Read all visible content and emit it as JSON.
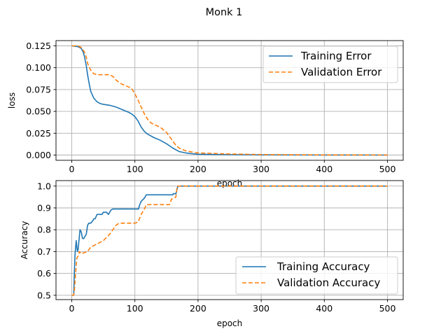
{
  "figure": {
    "suptitle": "Monk 1"
  },
  "chart_data": [
    {
      "type": "line",
      "xlabel": "epoch",
      "ylabel": "loss",
      "xlim": [
        -25,
        525
      ],
      "ylim": [
        -0.006,
        0.131
      ],
      "x_ticks": [
        0,
        100,
        200,
        300,
        400,
        500
      ],
      "y_ticks": [
        0.0,
        0.025,
        0.05,
        0.075,
        0.1,
        0.125
      ],
      "y_tick_labels": [
        "0.000",
        "0.025",
        "0.050",
        "0.075",
        "0.100",
        "0.125"
      ],
      "grid": true,
      "legend": "upper right",
      "series": [
        {
          "name": "Training Error",
          "color": "#1f77b4",
          "linestyle": "solid",
          "points": [
            [
              0,
              0.125
            ],
            [
              10,
              0.124
            ],
            [
              15,
              0.122
            ],
            [
              18,
              0.118
            ],
            [
              20,
              0.113
            ],
            [
              23,
              0.102
            ],
            [
              25,
              0.092
            ],
            [
              28,
              0.08
            ],
            [
              30,
              0.073
            ],
            [
              35,
              0.065
            ],
            [
              40,
              0.061
            ],
            [
              45,
              0.059
            ],
            [
              50,
              0.058
            ],
            [
              60,
              0.057
            ],
            [
              70,
              0.055
            ],
            [
              80,
              0.052
            ],
            [
              90,
              0.049
            ],
            [
              95,
              0.047
            ],
            [
              100,
              0.044
            ],
            [
              105,
              0.039
            ],
            [
              110,
              0.032
            ],
            [
              115,
              0.027
            ],
            [
              120,
              0.024
            ],
            [
              130,
              0.02
            ],
            [
              140,
              0.017
            ],
            [
              150,
              0.013
            ],
            [
              160,
              0.008
            ],
            [
              170,
              0.004
            ],
            [
              180,
              0.0025
            ],
            [
              190,
              0.0015
            ],
            [
              200,
              0.001
            ],
            [
              250,
              0.0004
            ],
            [
              300,
              0.0002
            ],
            [
              400,
              0.0001
            ],
            [
              500,
              0.0
            ]
          ]
        },
        {
          "name": "Validation Error",
          "color": "#ff7f0e",
          "linestyle": "dashed",
          "points": [
            [
              0,
              0.125
            ],
            [
              10,
              0.125
            ],
            [
              15,
              0.123
            ],
            [
              20,
              0.118
            ],
            [
              23,
              0.112
            ],
            [
              25,
              0.105
            ],
            [
              30,
              0.097
            ],
            [
              35,
              0.093
            ],
            [
              40,
              0.092
            ],
            [
              50,
              0.092
            ],
            [
              60,
              0.092
            ],
            [
              65,
              0.09
            ],
            [
              70,
              0.086
            ],
            [
              75,
              0.083
            ],
            [
              80,
              0.081
            ],
            [
              90,
              0.078
            ],
            [
              95,
              0.076
            ],
            [
              100,
              0.07
            ],
            [
              105,
              0.063
            ],
            [
              110,
              0.055
            ],
            [
              115,
              0.047
            ],
            [
              120,
              0.041
            ],
            [
              125,
              0.037
            ],
            [
              130,
              0.035
            ],
            [
              140,
              0.032
            ],
            [
              150,
              0.026
            ],
            [
              155,
              0.021
            ],
            [
              160,
              0.016
            ],
            [
              165,
              0.011
            ],
            [
              170,
              0.008
            ],
            [
              180,
              0.005
            ],
            [
              190,
              0.0035
            ],
            [
              200,
              0.0025
            ],
            [
              250,
              0.0012
            ],
            [
              300,
              0.0006
            ],
            [
              400,
              0.0002
            ],
            [
              500,
              0.0001
            ]
          ]
        }
      ]
    },
    {
      "type": "line",
      "xlabel": "epoch",
      "ylabel": "Accuracy",
      "xlim": [
        -25,
        525
      ],
      "ylim": [
        0.48,
        1.025
      ],
      "x_ticks": [
        0,
        100,
        200,
        300,
        400,
        500
      ],
      "y_ticks": [
        0.5,
        0.6,
        0.7,
        0.8,
        0.9,
        1.0
      ],
      "y_tick_labels": [
        "0.5",
        "0.6",
        "0.7",
        "0.8",
        "0.9",
        "1.0"
      ],
      "grid": true,
      "legend": "lower right",
      "series": [
        {
          "name": "Training Accuracy",
          "color": "#1f77b4",
          "linestyle": "solid",
          "points": [
            [
              0,
              0.5
            ],
            [
              3,
              0.5
            ],
            [
              4,
              0.6
            ],
            [
              5,
              0.68
            ],
            [
              6,
              0.72
            ],
            [
              7,
              0.75
            ],
            [
              8,
              0.72
            ],
            [
              9,
              0.7
            ],
            [
              10,
              0.71
            ],
            [
              12,
              0.77
            ],
            [
              13,
              0.8
            ],
            [
              15,
              0.79
            ],
            [
              17,
              0.76
            ],
            [
              19,
              0.76
            ],
            [
              21,
              0.77
            ],
            [
              23,
              0.78
            ],
            [
              25,
              0.82
            ],
            [
              27,
              0.83
            ],
            [
              30,
              0.83
            ],
            [
              33,
              0.84
            ],
            [
              35,
              0.85
            ],
            [
              37,
              0.85
            ],
            [
              40,
              0.87
            ],
            [
              45,
              0.87
            ],
            [
              48,
              0.87
            ],
            [
              50,
              0.88
            ],
            [
              55,
              0.88
            ],
            [
              58,
              0.87
            ],
            [
              62,
              0.89
            ],
            [
              65,
              0.895
            ],
            [
              100,
              0.895
            ],
            [
              106,
              0.895
            ],
            [
              107,
              0.91
            ],
            [
              110,
              0.93
            ],
            [
              115,
              0.945
            ],
            [
              118,
              0.96
            ],
            [
              160,
              0.96
            ],
            [
              161,
              0.965
            ],
            [
              165,
              0.965
            ],
            [
              168,
              1.0
            ],
            [
              500,
              1.0
            ]
          ]
        },
        {
          "name": "Validation Accuracy",
          "color": "#ff7f0e",
          "linestyle": "dashed",
          "points": [
            [
              0,
              0.5
            ],
            [
              3,
              0.5
            ],
            [
              4,
              0.52
            ],
            [
              6,
              0.6
            ],
            [
              8,
              0.67
            ],
            [
              10,
              0.68
            ],
            [
              12,
              0.7
            ],
            [
              15,
              0.69
            ],
            [
              20,
              0.695
            ],
            [
              25,
              0.7
            ],
            [
              30,
              0.72
            ],
            [
              40,
              0.735
            ],
            [
              50,
              0.75
            ],
            [
              55,
              0.765
            ],
            [
              60,
              0.78
            ],
            [
              65,
              0.8
            ],
            [
              70,
              0.82
            ],
            [
              75,
              0.83
            ],
            [
              100,
              0.83
            ],
            [
              105,
              0.835
            ],
            [
              110,
              0.87
            ],
            [
              115,
              0.895
            ],
            [
              118,
              0.915
            ],
            [
              155,
              0.915
            ],
            [
              158,
              0.94
            ],
            [
              162,
              0.945
            ],
            [
              165,
              0.95
            ],
            [
              167,
              1.0
            ],
            [
              500,
              1.0
            ]
          ]
        }
      ]
    }
  ]
}
